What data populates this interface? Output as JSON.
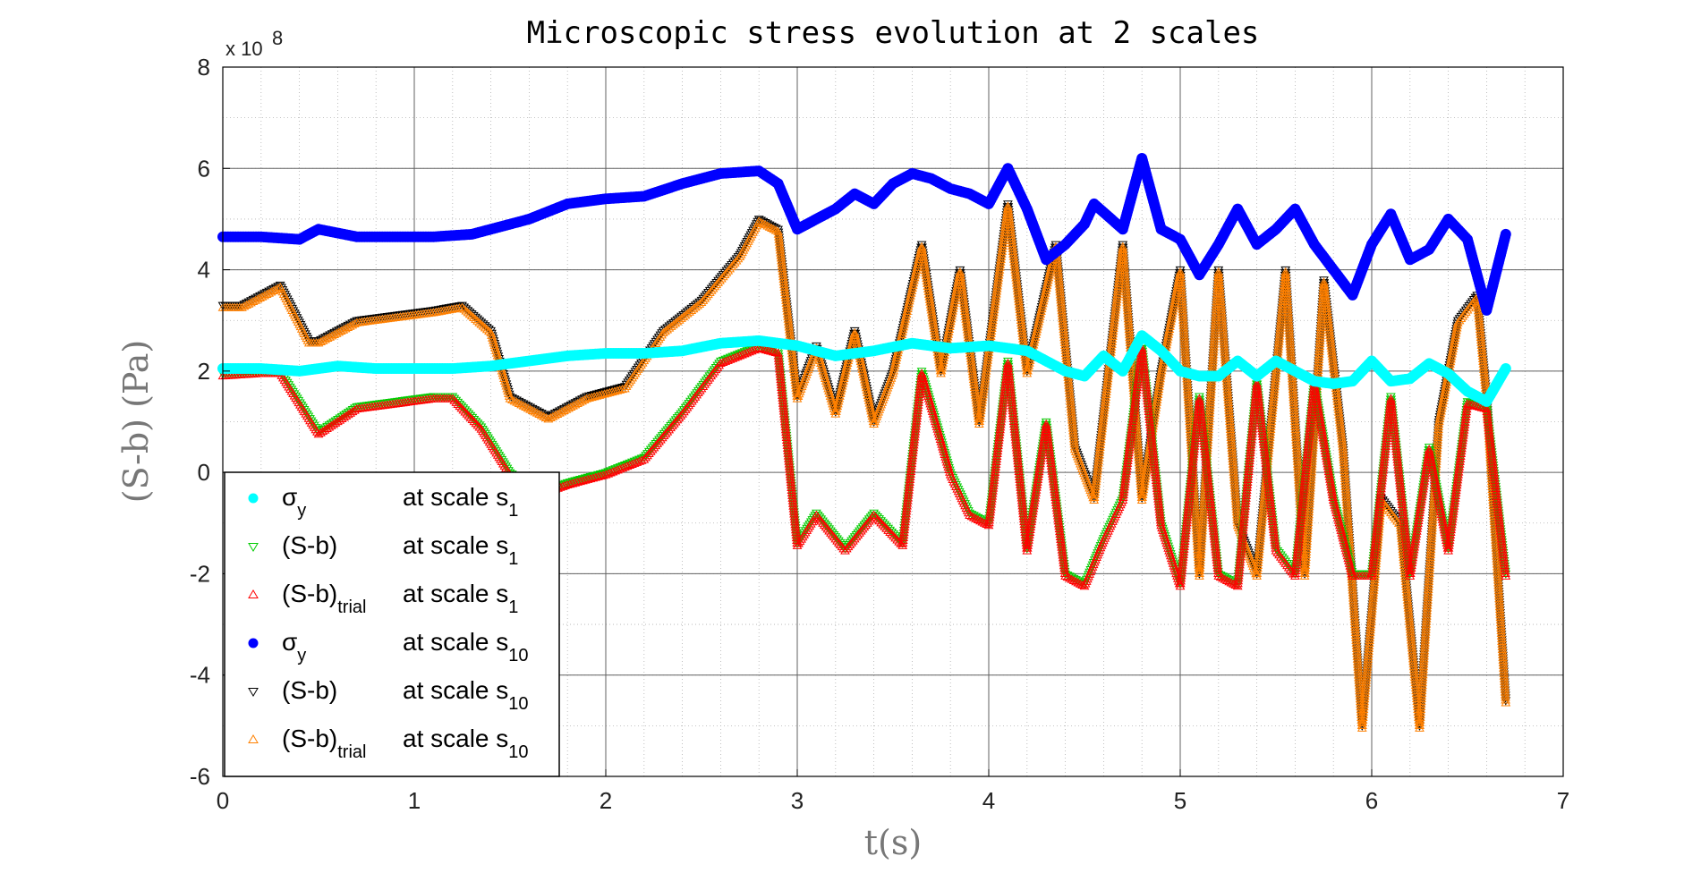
{
  "chart_data": {
    "type": "scatter",
    "title": "Microscopic stress evolution at 2 scales",
    "xlabel": "t(s)",
    "ylabel": "(S-b) (Pa)",
    "y_exponent_label": "x 10",
    "y_exponent_power": "8",
    "xlim": [
      0,
      7
    ],
    "ylim": [
      -6,
      8
    ],
    "x_ticks": [
      "0",
      "1",
      "2",
      "3",
      "4",
      "5",
      "6",
      "7"
    ],
    "y_ticks": [
      "-6",
      "-4",
      "-2",
      "0",
      "2",
      "4",
      "6",
      "8"
    ],
    "grid": true,
    "minor_grid": true,
    "legend_position": "bottom-left",
    "legend": [
      {
        "symbol": "σ",
        "sub": "y",
        "text": "at scale s",
        "scale_sub": "1",
        "color": "#00ffff",
        "marker": "dot"
      },
      {
        "symbol": "(S-b)",
        "sub": "",
        "text": "at scale s",
        "scale_sub": "1",
        "color": "#00cc00",
        "marker": "triangle-down"
      },
      {
        "symbol": "(S-b)",
        "sub": "trial",
        "text": "at scale s",
        "scale_sub": "1",
        "color": "#ff0000",
        "marker": "triangle-up"
      },
      {
        "symbol": "σ",
        "sub": "y",
        "text": "at scale s",
        "scale_sub": "10",
        "color": "#0000ff",
        "marker": "dot"
      },
      {
        "symbol": "(S-b)",
        "sub": "",
        "text": "at scale s",
        "scale_sub": "10",
        "color": "#000000",
        "marker": "triangle-down"
      },
      {
        "symbol": "(S-b)",
        "sub": "trial",
        "text": "at scale s",
        "scale_sub": "10",
        "color": "#ff8000",
        "marker": "triangle-up"
      }
    ],
    "series": [
      {
        "color": "#00ffff",
        "marker": "dot",
        "x": [
          0,
          0.2,
          0.4,
          0.6,
          0.8,
          1.0,
          1.2,
          1.4,
          1.6,
          1.8,
          2.0,
          2.2,
          2.4,
          2.6,
          2.8,
          3.0,
          3.2,
          3.4,
          3.6,
          3.8,
          4.0,
          4.2,
          4.4,
          4.5,
          4.6,
          4.7,
          4.8,
          4.9,
          5.0,
          5.1,
          5.2,
          5.3,
          5.4,
          5.5,
          5.6,
          5.7,
          5.8,
          5.9,
          6.0,
          6.1,
          6.2,
          6.3,
          6.4,
          6.5,
          6.6,
          6.7
        ],
        "y": [
          2.05,
          2.05,
          2.0,
          2.1,
          2.05,
          2.05,
          2.05,
          2.1,
          2.2,
          2.3,
          2.35,
          2.35,
          2.4,
          2.55,
          2.6,
          2.5,
          2.3,
          2.4,
          2.55,
          2.45,
          2.5,
          2.4,
          2.0,
          1.9,
          2.3,
          2.0,
          2.7,
          2.4,
          2.0,
          1.9,
          1.9,
          2.2,
          1.9,
          2.2,
          2.0,
          1.8,
          1.75,
          1.8,
          2.2,
          1.8,
          1.85,
          2.15,
          1.95,
          1.6,
          1.4,
          2.05
        ]
      },
      {
        "color": "#00cc00",
        "marker": "triangle-down",
        "x": [
          0,
          0.2,
          0.3,
          0.5,
          0.7,
          0.9,
          1.1,
          1.2,
          1.35,
          1.5,
          1.65,
          1.8,
          2.0,
          2.2,
          2.4,
          2.6,
          2.8,
          2.9,
          3.0,
          3.1,
          3.25,
          3.4,
          3.55,
          3.65,
          3.8,
          3.9,
          4.0,
          4.1,
          4.2,
          4.3,
          4.4,
          4.5,
          4.6,
          4.7,
          4.8,
          4.9,
          5.0,
          5.1,
          5.2,
          5.3,
          5.4,
          5.5,
          5.6,
          5.7,
          5.8,
          5.9,
          6.0,
          6.1,
          6.2,
          6.3,
          6.4,
          6.5,
          6.6,
          6.7
        ],
        "y": [
          1.95,
          2.0,
          2.0,
          0.8,
          1.3,
          1.4,
          1.5,
          1.5,
          0.9,
          0.0,
          -0.4,
          -0.2,
          0.0,
          0.3,
          1.2,
          2.2,
          2.5,
          2.4,
          -1.4,
          -0.8,
          -1.5,
          -0.8,
          -1.4,
          2.0,
          0.0,
          -0.8,
          -1.0,
          2.2,
          -1.5,
          1.0,
          -2.0,
          -2.2,
          -1.3,
          -0.5,
          2.5,
          -1.0,
          -2.2,
          1.5,
          -2.0,
          -2.2,
          1.8,
          -1.5,
          -2.0,
          1.8,
          -0.5,
          -2.0,
          -2.0,
          1.5,
          -2.0,
          0.5,
          -1.5,
          1.4,
          1.3,
          -2.0
        ]
      },
      {
        "color": "#ff0000",
        "marker": "triangle-up",
        "x": [
          0,
          0.2,
          0.3,
          0.5,
          0.7,
          0.9,
          1.1,
          1.2,
          1.35,
          1.5,
          1.65,
          1.8,
          2.0,
          2.2,
          2.4,
          2.6,
          2.8,
          2.9,
          3.0,
          3.1,
          3.25,
          3.4,
          3.55,
          3.65,
          3.8,
          3.9,
          4.0,
          4.1,
          4.2,
          4.3,
          4.4,
          4.5,
          4.6,
          4.7,
          4.8,
          4.9,
          5.0,
          5.1,
          5.2,
          5.3,
          5.4,
          5.5,
          5.6,
          5.7,
          5.8,
          5.9,
          6.0,
          6.1,
          6.2,
          6.3,
          6.4,
          6.5,
          6.6,
          6.7
        ],
        "y": [
          1.9,
          1.95,
          1.95,
          0.75,
          1.25,
          1.35,
          1.45,
          1.45,
          0.85,
          -0.05,
          -0.45,
          -0.25,
          -0.05,
          0.25,
          1.15,
          2.15,
          2.45,
          2.35,
          -1.45,
          -0.85,
          -1.55,
          -0.85,
          -1.45,
          1.95,
          -0.05,
          -0.85,
          -1.05,
          2.15,
          -1.55,
          0.95,
          -2.05,
          -2.25,
          -1.35,
          -0.55,
          2.45,
          -1.05,
          -2.25,
          1.45,
          -2.05,
          -2.25,
          1.75,
          -1.55,
          -2.05,
          1.75,
          -0.55,
          -2.05,
          -2.05,
          1.45,
          -2.05,
          0.45,
          -1.55,
          1.35,
          1.25,
          -2.05
        ]
      },
      {
        "color": "#0000ff",
        "marker": "dot",
        "x": [
          0,
          0.2,
          0.4,
          0.5,
          0.7,
          0.9,
          1.1,
          1.3,
          1.4,
          1.6,
          1.8,
          2.0,
          2.2,
          2.4,
          2.6,
          2.8,
          2.9,
          3.0,
          3.1,
          3.2,
          3.3,
          3.4,
          3.5,
          3.6,
          3.7,
          3.8,
          3.9,
          4.0,
          4.1,
          4.2,
          4.3,
          4.4,
          4.5,
          4.55,
          4.7,
          4.8,
          4.9,
          5.0,
          5.1,
          5.2,
          5.3,
          5.4,
          5.5,
          5.6,
          5.7,
          5.8,
          5.9,
          6.0,
          6.1,
          6.2,
          6.3,
          6.4,
          6.5,
          6.6,
          6.7
        ],
        "y": [
          4.65,
          4.65,
          4.6,
          4.8,
          4.65,
          4.65,
          4.65,
          4.7,
          4.8,
          5.0,
          5.3,
          5.4,
          5.45,
          5.7,
          5.9,
          5.95,
          5.7,
          4.8,
          5.0,
          5.2,
          5.5,
          5.3,
          5.7,
          5.9,
          5.8,
          5.6,
          5.5,
          5.3,
          6.0,
          5.2,
          4.2,
          4.5,
          4.9,
          5.3,
          4.8,
          6.2,
          4.8,
          4.6,
          3.9,
          4.5,
          5.2,
          4.5,
          4.8,
          5.2,
          4.5,
          4.0,
          3.5,
          4.5,
          5.1,
          4.2,
          4.4,
          5.0,
          4.6,
          3.2,
          4.7
        ]
      },
      {
        "color": "#000000",
        "marker": "triangle-down",
        "x": [
          0,
          0.1,
          0.3,
          0.45,
          0.5,
          0.7,
          0.9,
          1.1,
          1.25,
          1.4,
          1.5,
          1.7,
          1.9,
          2.1,
          2.3,
          2.5,
          2.7,
          2.8,
          2.9,
          3.0,
          3.1,
          3.2,
          3.3,
          3.4,
          3.5,
          3.65,
          3.75,
          3.85,
          3.95,
          4.1,
          4.2,
          4.35,
          4.45,
          4.55,
          4.7,
          4.8,
          4.9,
          5.0,
          5.1,
          5.2,
          5.3,
          5.4,
          5.55,
          5.65,
          5.75,
          5.85,
          5.95,
          6.05,
          6.15,
          6.25,
          6.35,
          6.45,
          6.55,
          6.6,
          6.7
        ],
        "y": [
          3.3,
          3.3,
          3.7,
          2.6,
          2.6,
          3.0,
          3.1,
          3.2,
          3.3,
          2.8,
          1.5,
          1.1,
          1.5,
          1.7,
          2.8,
          3.4,
          4.3,
          5.0,
          4.8,
          1.5,
          2.5,
          1.2,
          2.8,
          1.0,
          2.0,
          4.5,
          2.0,
          4.0,
          1.0,
          5.3,
          2.0,
          4.5,
          0.5,
          -0.5,
          4.5,
          -0.5,
          2.0,
          4.0,
          -2.0,
          4.0,
          -1.0,
          -2.0,
          4.0,
          -2.0,
          3.8,
          0.5,
          -5.0,
          -0.5,
          -1.0,
          -5.0,
          1.0,
          3.0,
          3.5,
          1.5,
          -4.5
        ]
      },
      {
        "color": "#ff8000",
        "marker": "triangle-up",
        "x": [
          0,
          0.1,
          0.3,
          0.45,
          0.5,
          0.7,
          0.9,
          1.1,
          1.25,
          1.4,
          1.5,
          1.7,
          1.9,
          2.1,
          2.3,
          2.5,
          2.7,
          2.8,
          2.9,
          3.0,
          3.1,
          3.2,
          3.3,
          3.4,
          3.5,
          3.65,
          3.75,
          3.85,
          3.95,
          4.1,
          4.2,
          4.35,
          4.45,
          4.55,
          4.7,
          4.8,
          4.9,
          5.0,
          5.1,
          5.2,
          5.3,
          5.4,
          5.55,
          5.65,
          5.75,
          5.85,
          5.95,
          6.05,
          6.15,
          6.25,
          6.35,
          6.45,
          6.55,
          6.6,
          6.7
        ],
        "y": [
          3.25,
          3.25,
          3.65,
          2.55,
          2.55,
          2.95,
          3.05,
          3.15,
          3.25,
          2.75,
          1.45,
          1.05,
          1.45,
          1.65,
          2.75,
          3.35,
          4.25,
          4.95,
          4.75,
          1.45,
          2.45,
          1.15,
          2.75,
          0.95,
          1.95,
          4.45,
          1.95,
          3.95,
          0.95,
          5.25,
          1.95,
          4.45,
          0.45,
          -0.55,
          4.45,
          -0.55,
          1.95,
          3.95,
          -2.05,
          3.95,
          -1.05,
          -2.05,
          3.95,
          -2.05,
          3.75,
          0.45,
          -5.05,
          -0.55,
          -1.05,
          -5.05,
          0.95,
          2.95,
          3.45,
          1.45,
          -4.55
        ]
      }
    ]
  }
}
